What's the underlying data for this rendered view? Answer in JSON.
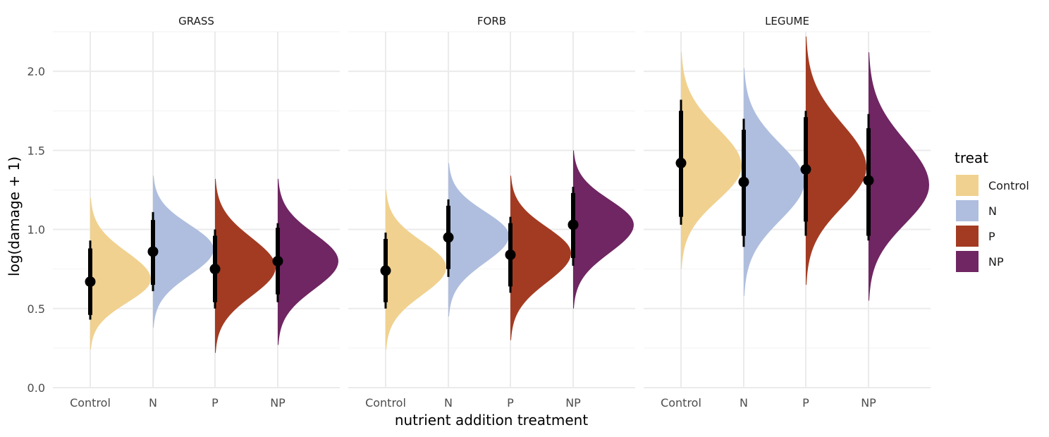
{
  "chart_data": {
    "type": "half-violin",
    "xlabel": "nutrient addition treatment",
    "ylabel": "log(damage + 1)",
    "ylim": [
      0,
      2.25
    ],
    "y_ticks": [
      "0.0",
      "0.5",
      "1.0",
      "1.5",
      "2.0"
    ],
    "y_tick_values": [
      0,
      0.5,
      1.0,
      1.5,
      2.0
    ],
    "categories": [
      "Control",
      "N",
      "P",
      "NP"
    ],
    "grid": true,
    "legend": {
      "title": "treat",
      "position": "right",
      "entries": [
        "Control",
        "N",
        "P",
        "NP"
      ]
    },
    "colors": {
      "Control": "#F0D18F",
      "N": "#AFBEDE",
      "P": "#A33B22",
      "NP": "#6F2662",
      "point": "#000000"
    },
    "panels": [
      {
        "title": "GRASS",
        "series": [
          {
            "name": "Control",
            "mode": 0.685,
            "min": 0.24,
            "max": 1.2,
            "median": 0.67,
            "q66": [
              0.46,
              0.88
            ],
            "q95": [
              0.43,
              0.93
            ]
          },
          {
            "name": "N",
            "mode": 0.875,
            "min": 0.38,
            "max": 1.34,
            "median": 0.86,
            "q66": [
              0.65,
              1.06
            ],
            "q95": [
              0.61,
              1.11
            ]
          },
          {
            "name": "P",
            "mode": 0.76,
            "min": 0.22,
            "max": 1.32,
            "median": 0.75,
            "q66": [
              0.54,
              0.96
            ],
            "q95": [
              0.5,
              1.0
            ]
          },
          {
            "name": "NP",
            "mode": 0.8,
            "min": 0.27,
            "max": 1.32,
            "median": 0.8,
            "q66": [
              0.59,
              1.01
            ],
            "q95": [
              0.54,
              1.04
            ]
          }
        ]
      },
      {
        "title": "FORB",
        "series": [
          {
            "name": "Control",
            "mode": 0.76,
            "min": 0.24,
            "max": 1.25,
            "median": 0.74,
            "q66": [
              0.54,
              0.94
            ],
            "q95": [
              0.5,
              0.98
            ]
          },
          {
            "name": "N",
            "mode": 0.96,
            "min": 0.45,
            "max": 1.42,
            "median": 0.95,
            "q66": [
              0.75,
              1.15
            ],
            "q95": [
              0.7,
              1.19
            ]
          },
          {
            "name": "P",
            "mode": 0.85,
            "min": 0.3,
            "max": 1.34,
            "median": 0.84,
            "q66": [
              0.64,
              1.04
            ],
            "q95": [
              0.6,
              1.08
            ]
          },
          {
            "name": "NP",
            "mode": 1.03,
            "min": 0.5,
            "max": 1.5,
            "median": 1.03,
            "q66": [
              0.82,
              1.23
            ],
            "q95": [
              0.77,
              1.27
            ]
          }
        ]
      },
      {
        "title": "LEGUME",
        "series": [
          {
            "name": "Control",
            "mode": 1.4,
            "min": 0.75,
            "max": 2.12,
            "median": 1.42,
            "q66": [
              1.08,
              1.75
            ],
            "q95": [
              1.03,
              1.82
            ]
          },
          {
            "name": "N",
            "mode": 1.3,
            "min": 0.58,
            "max": 2.02,
            "median": 1.3,
            "q66": [
              0.96,
              1.63
            ],
            "q95": [
              0.89,
              1.7
            ]
          },
          {
            "name": "P",
            "mode": 1.39,
            "min": 0.65,
            "max": 2.22,
            "median": 1.38,
            "q66": [
              1.05,
              1.71
            ],
            "q95": [
              0.96,
              1.75
            ]
          },
          {
            "name": "NP",
            "mode": 1.28,
            "min": 0.55,
            "max": 2.12,
            "median": 1.31,
            "q66": [
              0.96,
              1.64
            ],
            "q95": [
              0.93,
              1.73
            ]
          }
        ]
      }
    ]
  }
}
